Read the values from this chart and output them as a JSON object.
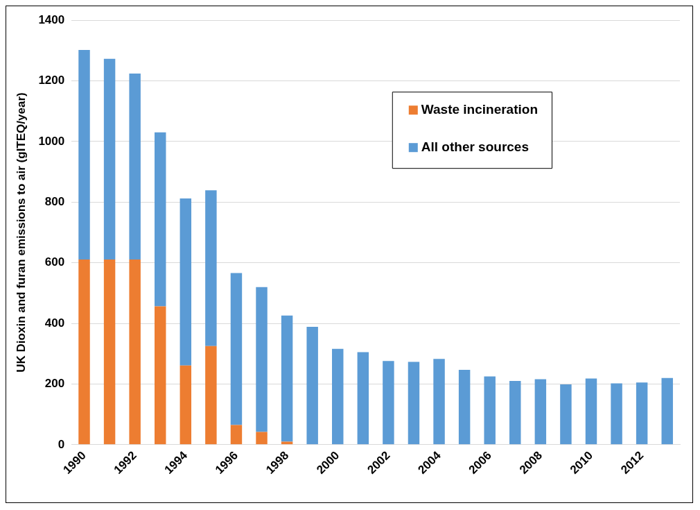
{
  "chart_data": {
    "type": "bar",
    "stacked": true,
    "ylabel": "UK Dioxin and furan emissions to air (gITEQ/year)",
    "categories": [
      "1990",
      null,
      "1992",
      null,
      "1994",
      null,
      "1996",
      null,
      "1998",
      null,
      "2000",
      null,
      "2002",
      null,
      "2004",
      null,
      "2006",
      null,
      "2008",
      null,
      "2010",
      null,
      "2012",
      null
    ],
    "series": [
      {
        "name": "Waste incineration",
        "color": "#ed7d31",
        "values": [
          611,
          611,
          611,
          456,
          261,
          325,
          65,
          42,
          10,
          null,
          null,
          null,
          null,
          null,
          null,
          null,
          null,
          null,
          null,
          null,
          null,
          null,
          null,
          null
        ]
      },
      {
        "name": "All other sources",
        "color": "#5b9bd5",
        "values": [
          691,
          662,
          613,
          574,
          551,
          514,
          501,
          478,
          416,
          389,
          316,
          305,
          276,
          273,
          283,
          247,
          225,
          210,
          216,
          199,
          218,
          202,
          205,
          220
        ]
      }
    ],
    "ylim": [
      0,
      1400
    ],
    "yticks": [
      0,
      200,
      400,
      600,
      800,
      1000,
      1200,
      1400
    ],
    "grid": "y",
    "legend": "top right"
  }
}
